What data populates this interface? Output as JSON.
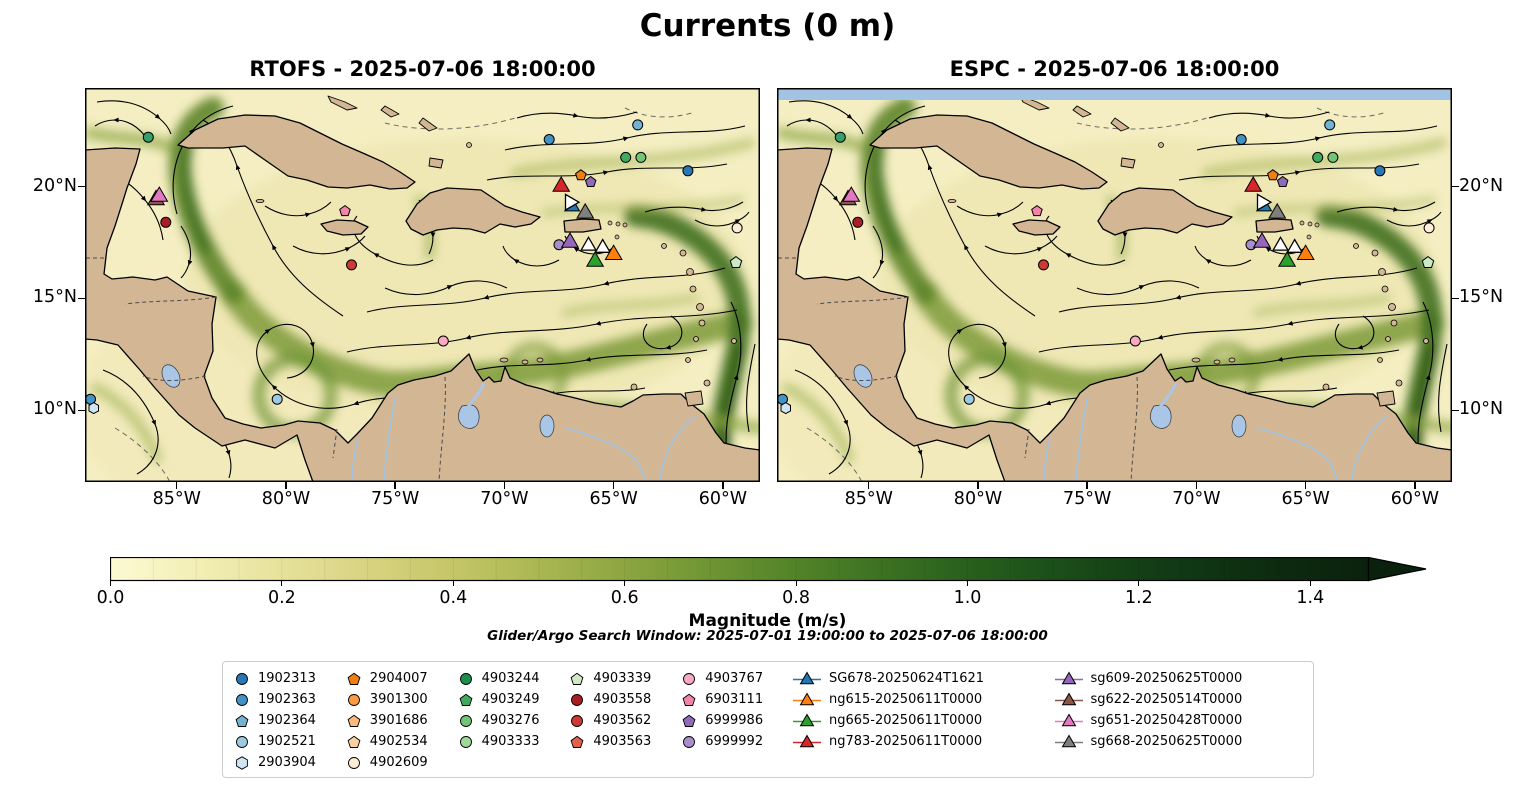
{
  "search_window": "Glider/Argo Search Window: 2025-07-01 19:00:00 to 2025-07-06 18:00:00",
  "chart_data": {
    "type": "heatmap",
    "subtype": "ocean-current-streamplot-map",
    "title": "Currents (0 m)",
    "panels": [
      {
        "id": "rtofs",
        "title": "RTOFS - 2025-07-06 18:00:00",
        "lat_label_side": "left",
        "top_band": false
      },
      {
        "id": "espc",
        "title": "ESPC - 2025-07-06 18:00:00",
        "lat_label_side": "right",
        "top_band": true
      }
    ],
    "extent": {
      "lonMin": -89.2,
      "lonMax": -58.3,
      "latMin": 6.8,
      "latMax": 24.4
    },
    "lon_ticks": [
      {
        "v": -85,
        "label": "85°W"
      },
      {
        "v": -80,
        "label": "80°W"
      },
      {
        "v": -75,
        "label": "75°W"
      },
      {
        "v": -70,
        "label": "70°W"
      },
      {
        "v": -65,
        "label": "65°W"
      },
      {
        "v": -60,
        "label": "60°W"
      }
    ],
    "lat_ticks": [
      {
        "v": 20,
        "label": "20°N"
      },
      {
        "v": 15,
        "label": "15°N"
      },
      {
        "v": 10,
        "label": "10°N"
      }
    ],
    "colorbar": {
      "label": "Magnitude (m/s)",
      "vmin": 0.0,
      "vmax": 1.4,
      "extend": "max",
      "tick_values": [
        0.0,
        0.2,
        0.4,
        0.6,
        0.8,
        1.0,
        1.2,
        1.4
      ],
      "tick_labels": [
        "0.0",
        "0.2",
        "0.4",
        "0.6",
        "0.8",
        "1.0",
        "1.2",
        "1.4"
      ],
      "stops": [
        "#fcfad2",
        "#f3efb6",
        "#e7e29c",
        "#d9d483",
        "#c7c769",
        "#adb954",
        "#90a843",
        "#729735",
        "#57862a",
        "#407523",
        "#2c641e",
        "#1e531a",
        "#154317",
        "#103513",
        "#0d2a10",
        "#0a220d"
      ]
    },
    "markers": [
      {
        "lon": -86.3,
        "lat": 22.2,
        "shape": "circle",
        "color": "#35a06a",
        "size": 10
      },
      {
        "lon": -85.5,
        "lat": 18.4,
        "shape": "circle",
        "color": "#a81e22",
        "size": 10
      },
      {
        "lon": -77.3,
        "lat": 18.9,
        "shape": "pentagon",
        "color": "#f283ab",
        "size": 10
      },
      {
        "lon": -77.0,
        "lat": 16.5,
        "shape": "circle",
        "color": "#cb3b33",
        "size": 10
      },
      {
        "lon": -72.8,
        "lat": 13.1,
        "shape": "circle",
        "color": "#f8a8bf",
        "size": 10
      },
      {
        "lon": -80.4,
        "lat": 10.5,
        "shape": "circle",
        "color": "#9ecae1",
        "size": 10
      },
      {
        "lon": -88.95,
        "lat": 10.5,
        "shape": "circle",
        "color": "#4292c6",
        "size": 10
      },
      {
        "lon": -88.8,
        "lat": 10.1,
        "shape": "hexagon",
        "color": "#cfe5f2",
        "size": 10
      },
      {
        "lon": -67.95,
        "lat": 22.1,
        "shape": "circle",
        "color": "#4292c6",
        "size": 10
      },
      {
        "lon": -63.9,
        "lat": 22.75,
        "shape": "circle",
        "color": "#74b2d4",
        "size": 10
      },
      {
        "lon": -61.6,
        "lat": 20.7,
        "shape": "circle",
        "color": "#2878b8",
        "size": 10
      },
      {
        "lon": -66.5,
        "lat": 20.5,
        "shape": "pentagon",
        "color": "#f07f13",
        "size": 10
      },
      {
        "lon": -66.05,
        "lat": 20.2,
        "shape": "pentagon",
        "color": "#8d6bb8",
        "size": 10
      },
      {
        "lon": -64.45,
        "lat": 21.3,
        "shape": "circle",
        "color": "#41ab5d",
        "size": 10
      },
      {
        "lon": -63.75,
        "lat": 21.3,
        "shape": "circle",
        "color": "#74c476",
        "size": 10
      },
      {
        "lon": -59.35,
        "lat": 18.15,
        "shape": "circle",
        "color": "#feeed8",
        "size": 10
      },
      {
        "lon": -59.4,
        "lat": 16.6,
        "shape": "pentagon",
        "color": "#cdeac4",
        "size": 11
      },
      {
        "lon": -67.5,
        "lat": 17.4,
        "shape": "circle",
        "color": "#a98fc9",
        "size": 10
      },
      {
        "ref": "ng783-20250611T0000",
        "lon": -67.4,
        "lat": 20.0,
        "shape": "triangle",
        "color": "#d62728",
        "size": 17
      },
      {
        "ref": "SG678-20250624T1621",
        "lon": -66.9,
        "lat": 19.1,
        "shape": "triangle",
        "color": "#1f77b4",
        "size": 15
      },
      {
        "lon": -67.0,
        "lat": 19.3,
        "shape": "triangle-right",
        "color": "#ffffff",
        "size": 16
      },
      {
        "ref": "sg668-20250625T0000",
        "lon": -66.3,
        "lat": 18.8,
        "shape": "triangle",
        "color": "#7f7f7f",
        "size": 17
      },
      {
        "ref": "sg609-20250625T0000",
        "lon": -67.0,
        "lat": 17.5,
        "shape": "triangle",
        "color": "#9467bd",
        "size": 17
      },
      {
        "lon": -66.15,
        "lat": 17.35,
        "shape": "triangle",
        "color": "#ffffff",
        "size": 15
      },
      {
        "lon": -65.5,
        "lat": 17.25,
        "shape": "triangle",
        "color": "#ffffff",
        "size": 15
      },
      {
        "ref": "ng665-20250611T0000",
        "lon": -65.85,
        "lat": 16.65,
        "shape": "triangle",
        "color": "#2ca02c",
        "size": 17
      },
      {
        "ref": "ng615-20250611T0000",
        "lon": -65.0,
        "lat": 16.95,
        "shape": "triangle",
        "color": "#ff7f0e",
        "size": 17
      },
      {
        "ref": "sg622-20250514T0000",
        "lon": -85.95,
        "lat": 19.4,
        "shape": "triangle",
        "color": "#8c564b",
        "size": 17
      },
      {
        "ref": "sg651-20250428T0000",
        "lon": -85.8,
        "lat": 19.55,
        "shape": "triangle",
        "color": "#e377c2",
        "size": 17
      }
    ]
  },
  "legend": {
    "columns": [
      {
        "items": [
          {
            "label": "1902313",
            "shape": "circle",
            "color": "#2878b8"
          },
          {
            "label": "1902363",
            "shape": "circle",
            "color": "#4292c6"
          },
          {
            "label": "1902364",
            "shape": "pentagon",
            "color": "#74b2d4"
          },
          {
            "label": "1902521",
            "shape": "circle",
            "color": "#9ecae1"
          },
          {
            "label": "2903904",
            "shape": "hexagon",
            "color": "#cfe5f2"
          }
        ]
      },
      {
        "items": [
          {
            "label": "2904007",
            "shape": "pentagon",
            "color": "#f07f13"
          },
          {
            "label": "3901300",
            "shape": "circle",
            "color": "#fd9a44"
          },
          {
            "label": "3901686",
            "shape": "pentagon",
            "color": "#fdb97d"
          },
          {
            "label": "4902534",
            "shape": "pentagon",
            "color": "#fdd0a2"
          },
          {
            "label": "4902609",
            "shape": "circle",
            "color": "#feeed8"
          }
        ]
      },
      {
        "items": [
          {
            "label": "4903244",
            "shape": "circle",
            "color": "#1e8e4e"
          },
          {
            "label": "4903249",
            "shape": "pentagon",
            "color": "#41ab5d"
          },
          {
            "label": "4903276",
            "shape": "circle",
            "color": "#74c476"
          },
          {
            "label": "4903333",
            "shape": "circle",
            "color": "#a1d99b"
          }
        ]
      },
      {
        "items": [
          {
            "label": "4903339",
            "shape": "pentagon",
            "color": "#cdeac4"
          },
          {
            "label": "4903558",
            "shape": "circle",
            "color": "#a81e22"
          },
          {
            "label": "4903562",
            "shape": "circle",
            "color": "#cb3b33"
          },
          {
            "label": "4903563",
            "shape": "pentagon",
            "color": "#e4604e"
          }
        ]
      },
      {
        "items": [
          {
            "label": "4903767",
            "shape": "circle",
            "color": "#f8a8bf"
          },
          {
            "label": "6903111",
            "shape": "pentagon",
            "color": "#f283ab"
          },
          {
            "label": "6999986",
            "shape": "pentagon",
            "color": "#8d6bb8"
          },
          {
            "label": "6999992",
            "shape": "circle",
            "color": "#a98fc9"
          }
        ]
      },
      {
        "items": [
          {
            "label": "SG678-20250624T1621",
            "shape": "triangle-line",
            "color": "#1f77b4"
          },
          {
            "label": "ng615-20250611T0000",
            "shape": "triangle-line",
            "color": "#ff7f0e"
          },
          {
            "label": "ng665-20250611T0000",
            "shape": "triangle-line",
            "color": "#2ca02c"
          },
          {
            "label": "ng783-20250611T0000",
            "shape": "triangle-line",
            "color": "#d62728"
          }
        ]
      },
      {
        "items": [
          {
            "label": "sg609-20250625T0000",
            "shape": "triangle-line",
            "color": "#9467bd"
          },
          {
            "label": "sg622-20250514T0000",
            "shape": "triangle-line",
            "color": "#8c564b"
          },
          {
            "label": "sg651-20250428T0000",
            "shape": "triangle-line",
            "color": "#e377c2"
          },
          {
            "label": "sg668-20250625T0000",
            "shape": "triangle-line",
            "color": "#7f7f7f"
          }
        ]
      }
    ]
  }
}
